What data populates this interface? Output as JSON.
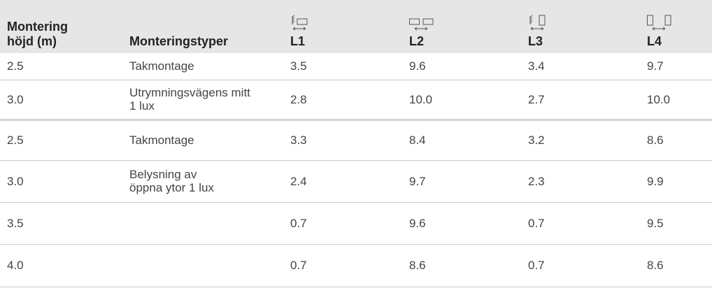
{
  "table": {
    "header": [
      "Montering\nhöjd (m)",
      "Monteringstyper",
      "L1",
      "L2",
      "L3",
      "L4"
    ],
    "rows": [
      [
        "2.5",
        "Takmontage",
        "3.5",
        "9.6",
        "3.4",
        "9.7"
      ],
      [
        "3.0",
        "Utrymningsvägens mitt\n1 lux",
        "2.8",
        "10.0",
        "2.7",
        "10.0"
      ],
      [
        "2.5",
        "Takmontage",
        "3.3",
        "8.4",
        "3.2",
        "8.6"
      ],
      [
        "3.0",
        "Belysning av\nöppna ytor 1 lux",
        "2.4",
        "9.7",
        "2.3",
        "9.9"
      ],
      [
        "3.5",
        null,
        "0.7",
        "9.6",
        "0.7",
        "9.5"
      ],
      [
        "4.0",
        null,
        "0.7",
        "8.6",
        "0.7",
        "8.6"
      ]
    ]
  }
}
